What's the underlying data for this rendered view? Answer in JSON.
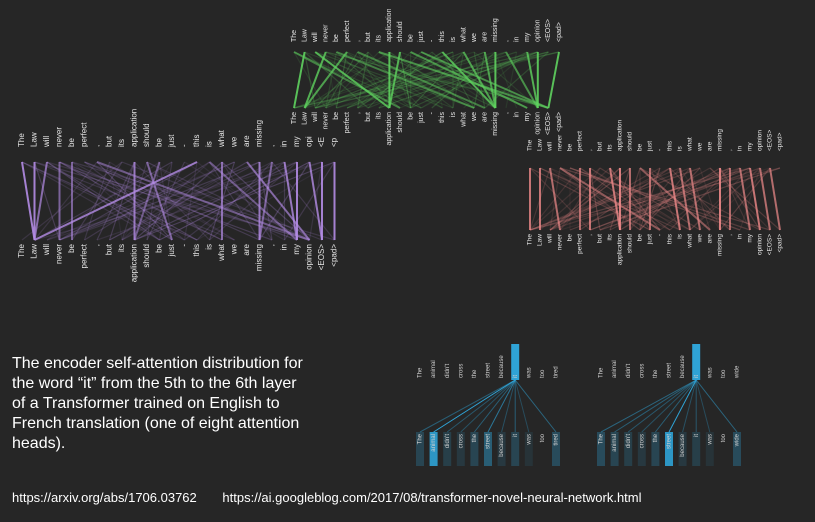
{
  "sentence_tokens": [
    "The",
    "Law",
    "will",
    "never",
    "be",
    "perfect",
    ",",
    "but",
    "its",
    "application",
    "should",
    "be",
    "just",
    "-",
    "this",
    "is",
    "what",
    "we",
    "are",
    "missing",
    ",",
    "in",
    "my",
    "opinion",
    "<EOS>",
    "<pad>"
  ],
  "left_top_tokens": [
    "The",
    "Law",
    "will",
    "never",
    "be",
    "perfect",
    ",",
    "but",
    "its",
    "application",
    "should",
    "be",
    "just",
    "-",
    "this",
    "is",
    "what",
    "we",
    "are",
    "missing",
    ",",
    "in",
    "my",
    "opi",
    "<E",
    "<p"
  ],
  "small_tokens": [
    "The",
    "animal",
    "didn't",
    "cross",
    "the",
    "street",
    "because",
    "it",
    "was",
    "too",
    "tired"
  ],
  "small_tokens_2": [
    "The",
    "animal",
    "didn't",
    "cross",
    "the",
    "street",
    "because",
    "it",
    "was",
    "too",
    "wide"
  ],
  "caption": "The encoder self-attention distribution for the word “it” from the 5th to the 6th layer of a Transformer trained on English to French translation (one of eight attention heads).",
  "links": {
    "paper": "https://arxiv.org/abs/1706.03762",
    "blog": "https://ai.googleblog.com/2017/08/transformer-novel-neural-network.html"
  },
  "colors": {
    "green": "#5fd35f",
    "purple": "#b48ce6",
    "red": "#f08a8a",
    "blue": "#2fa3d6"
  }
}
